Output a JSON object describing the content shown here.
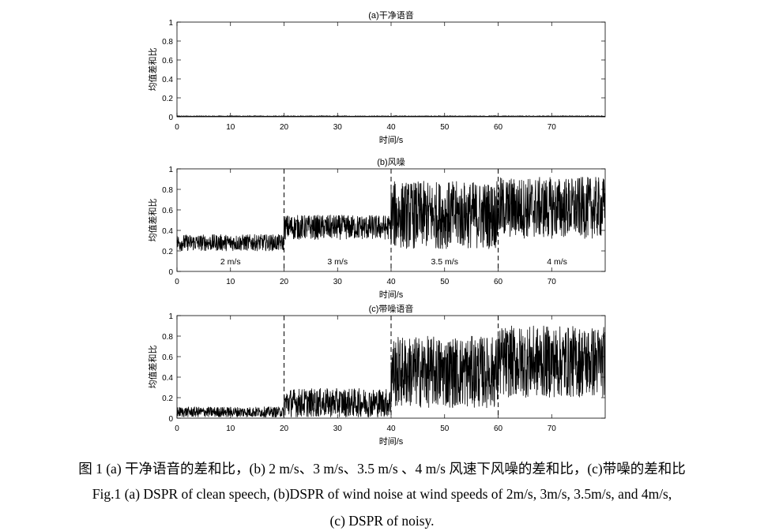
{
  "chart_data": [
    {
      "type": "line",
      "title": "(a)干净语音",
      "xlabel": "时间/s",
      "ylabel": "均值差和比",
      "xlim": [
        0,
        80
      ],
      "ylim": [
        0,
        1
      ],
      "xticks": [
        "0",
        "10",
        "20",
        "30",
        "40",
        "50",
        "60",
        "70"
      ],
      "yticks": [
        "0",
        "0.2",
        "0.4",
        "0.6",
        "0.8",
        "1"
      ],
      "grid": false,
      "dividers": [],
      "segment_labels": [],
      "segments": [
        {
          "x_start": 0,
          "x_end": 80,
          "mean": 0.005,
          "amplitude": 0.006
        }
      ]
    },
    {
      "type": "line",
      "title": "(b)风噪",
      "xlabel": "时间/s",
      "ylabel": "均值差和比",
      "xlim": [
        0,
        80
      ],
      "ylim": [
        0,
        1
      ],
      "xticks": [
        "0",
        "10",
        "20",
        "30",
        "40",
        "50",
        "60",
        "70"
      ],
      "yticks": [
        "0",
        "0.2",
        "0.4",
        "0.6",
        "0.8",
        "1"
      ],
      "grid": false,
      "dividers": [
        20,
        40,
        60
      ],
      "segment_labels": [
        {
          "text": "2 m/s",
          "x": 10,
          "y": 0.1
        },
        {
          "text": "3 m/s",
          "x": 30,
          "y": 0.1
        },
        {
          "text": "3.5 m/s",
          "x": 50,
          "y": 0.1
        },
        {
          "text": "4 m/s",
          "x": 71,
          "y": 0.1
        }
      ],
      "segments": [
        {
          "x_start": 0,
          "x_end": 20,
          "mean": 0.28,
          "amplitude": 0.08
        },
        {
          "x_start": 20,
          "x_end": 40,
          "mean": 0.43,
          "amplitude": 0.12
        },
        {
          "x_start": 40,
          "x_end": 60,
          "mean": 0.55,
          "amplitude": 0.33
        },
        {
          "x_start": 60,
          "x_end": 80,
          "mean": 0.62,
          "amplitude": 0.3
        }
      ]
    },
    {
      "type": "line",
      "title": "(c)带噪语音",
      "xlabel": "时间/s",
      "ylabel": "均值差和比",
      "xlim": [
        0,
        80
      ],
      "ylim": [
        0,
        1
      ],
      "xticks": [
        "0",
        "10",
        "20",
        "30",
        "40",
        "50",
        "60",
        "70"
      ],
      "yticks": [
        "0",
        "0.2",
        "0.4",
        "0.6",
        "0.8",
        "1"
      ],
      "grid": false,
      "dividers": [
        20,
        40,
        60
      ],
      "segment_labels": [],
      "segments": [
        {
          "x_start": 0,
          "x_end": 20,
          "mean": 0.06,
          "amplitude": 0.05
        },
        {
          "x_start": 20,
          "x_end": 40,
          "mean": 0.15,
          "amplitude": 0.14
        },
        {
          "x_start": 40,
          "x_end": 60,
          "mean": 0.45,
          "amplitude": 0.35
        },
        {
          "x_start": 60,
          "x_end": 80,
          "mean": 0.55,
          "amplitude": 0.35
        }
      ]
    }
  ],
  "caption": {
    "zh": "图 1 (a) 干净语音的差和比，(b) 2 m/s、3 m/s、3.5 m/s 、4 m/s 风速下风噪的差和比，(c)带噪的差和比",
    "en_line1": "Fig.1 (a) DSPR of clean speech, (b)DSPR of wind noise at wind speeds of 2m/s, 3m/s, 3.5m/s, and 4m/s,",
    "en_line2": "(c) DSPR of noisy."
  }
}
